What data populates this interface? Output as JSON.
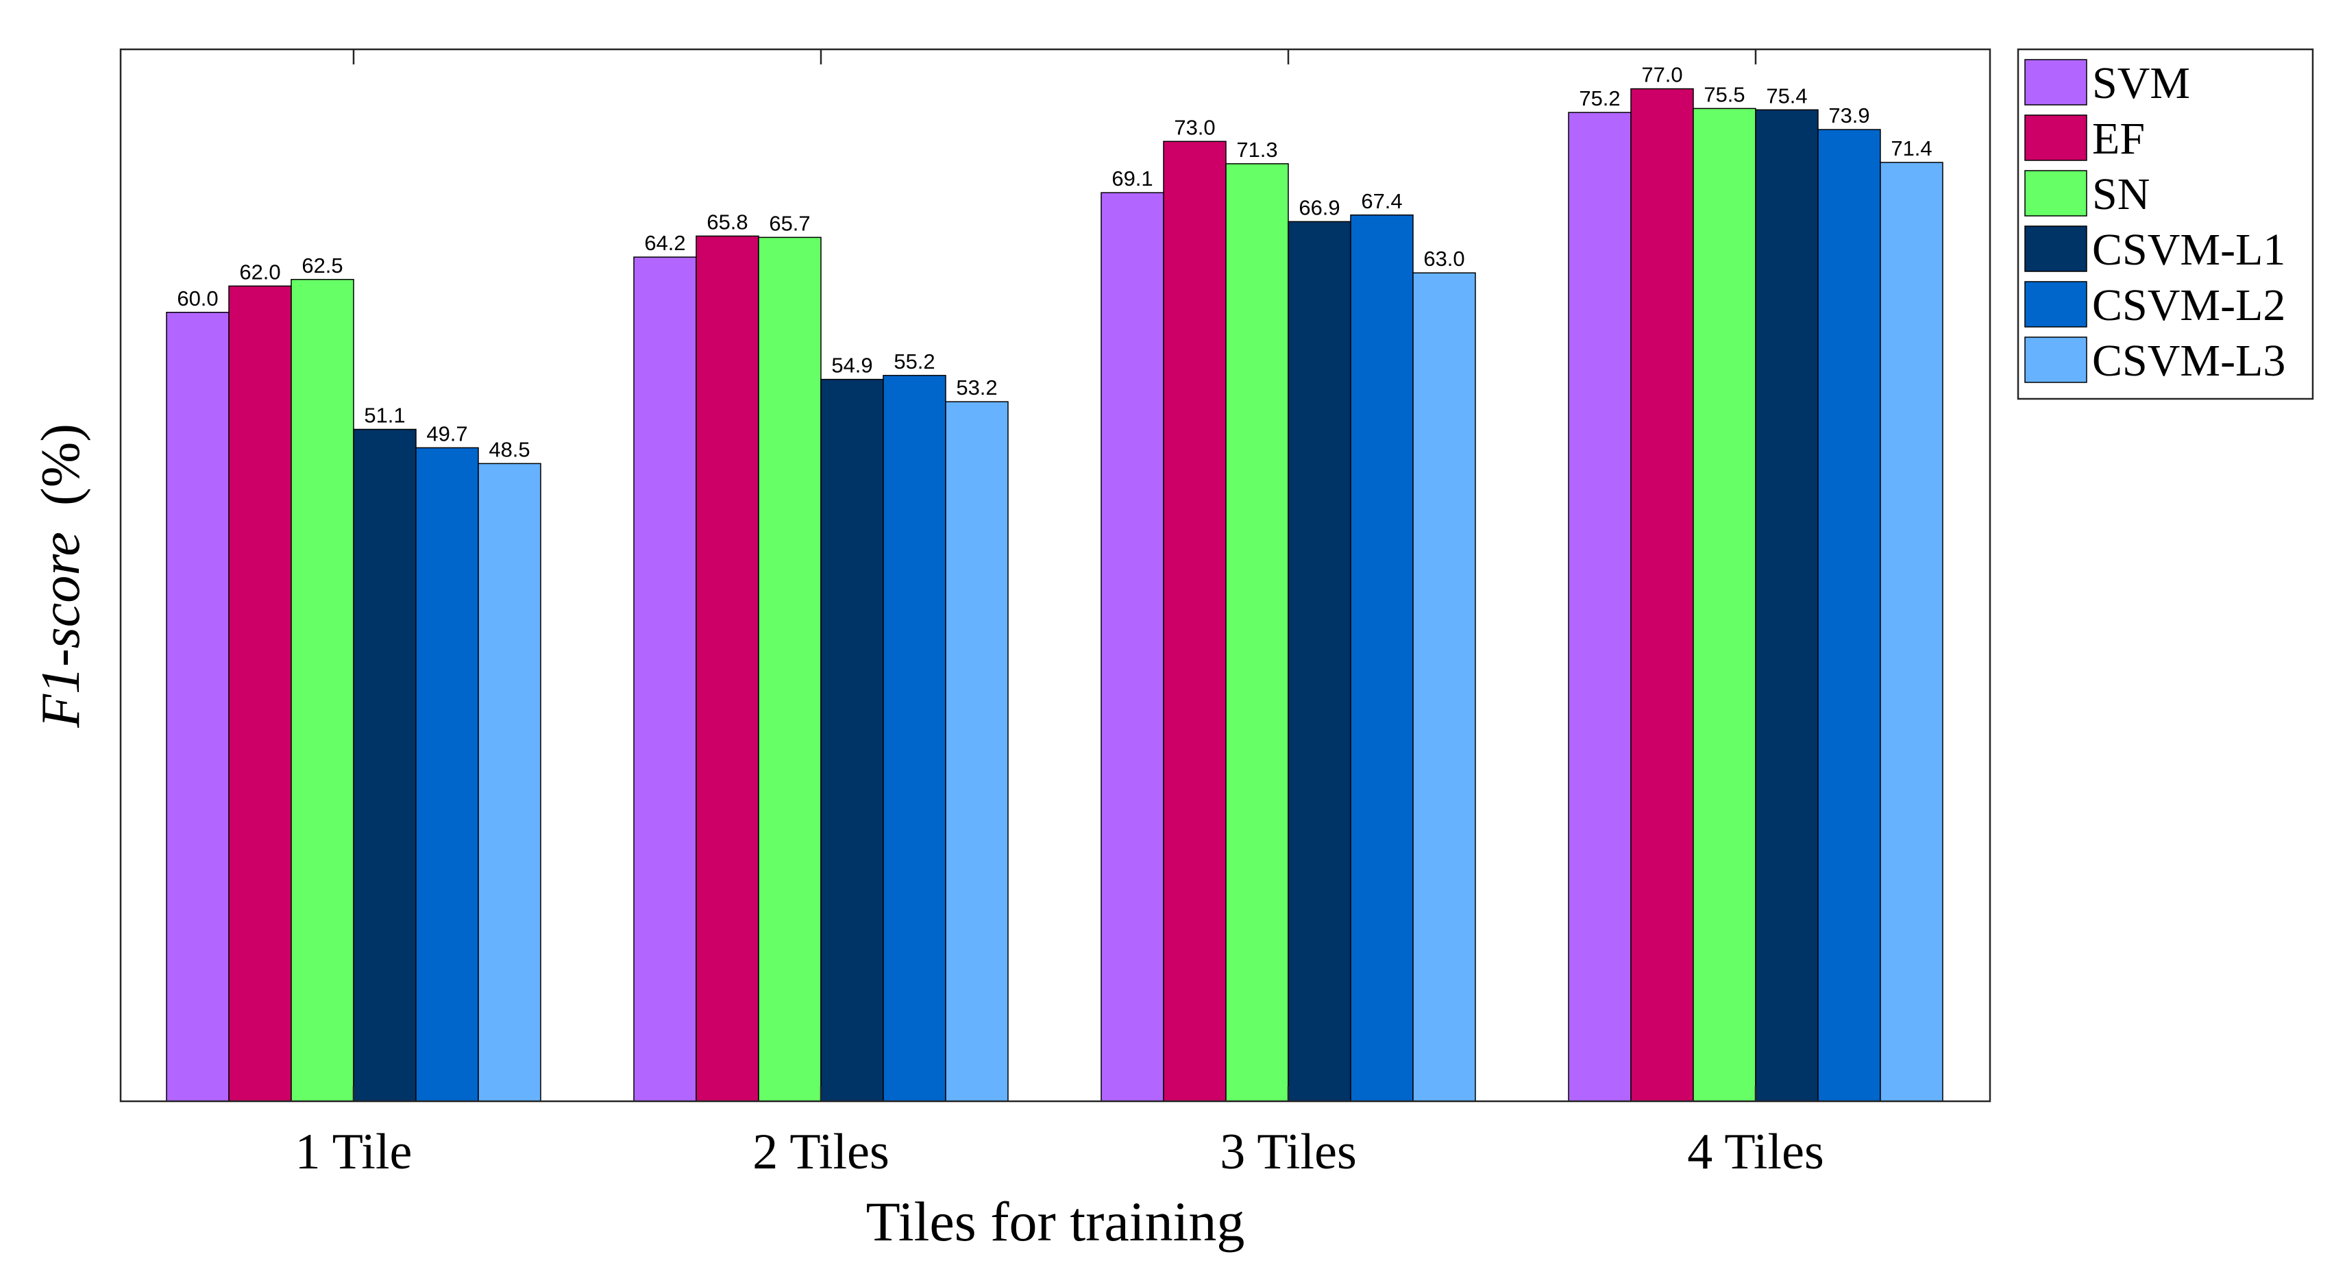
{
  "chart_data": {
    "type": "bar",
    "title": "",
    "xlabel": "Tiles for training",
    "ylabel_italic": "F1-score",
    "ylabel_unit": "(%)",
    "categories": [
      "1 Tile",
      "2 Tiles",
      "3 Tiles",
      "4 Tiles"
    ],
    "ylim": [
      0,
      80
    ],
    "grid": false,
    "legend_position": "outside-top-right",
    "series": [
      {
        "name": "SVM",
        "color": "#B266FF",
        "values": [
          60.0,
          64.2,
          69.1,
          75.2
        ]
      },
      {
        "name": "EF",
        "color": "#CC0066",
        "values": [
          62.0,
          65.8,
          73.0,
          77.0
        ]
      },
      {
        "name": "SN",
        "color": "#66FF66",
        "values": [
          62.5,
          65.7,
          71.3,
          75.5
        ]
      },
      {
        "name": "CSVM-L1",
        "color": "#003366",
        "values": [
          51.1,
          54.9,
          66.9,
          75.4
        ]
      },
      {
        "name": "CSVM-L2",
        "color": "#0066CC",
        "values": [
          49.7,
          55.2,
          67.4,
          73.9
        ]
      },
      {
        "name": "CSVM-L3",
        "color": "#66B2FF",
        "values": [
          48.5,
          53.2,
          63.0,
          71.4
        ]
      }
    ],
    "value_labels": [
      [
        "60.0",
        "64.2",
        "69.1",
        "75.2"
      ],
      [
        "62.0",
        "65.8",
        "73.0",
        "77.0"
      ],
      [
        "62.5",
        "65.7",
        "71.3",
        "75.5"
      ],
      [
        "51.1",
        "54.9",
        "66.9",
        "75.4"
      ],
      [
        "49.7",
        "55.2",
        "67.4",
        "73.9"
      ],
      [
        "48.5",
        "53.2",
        "63.0",
        "71.4"
      ]
    ]
  }
}
